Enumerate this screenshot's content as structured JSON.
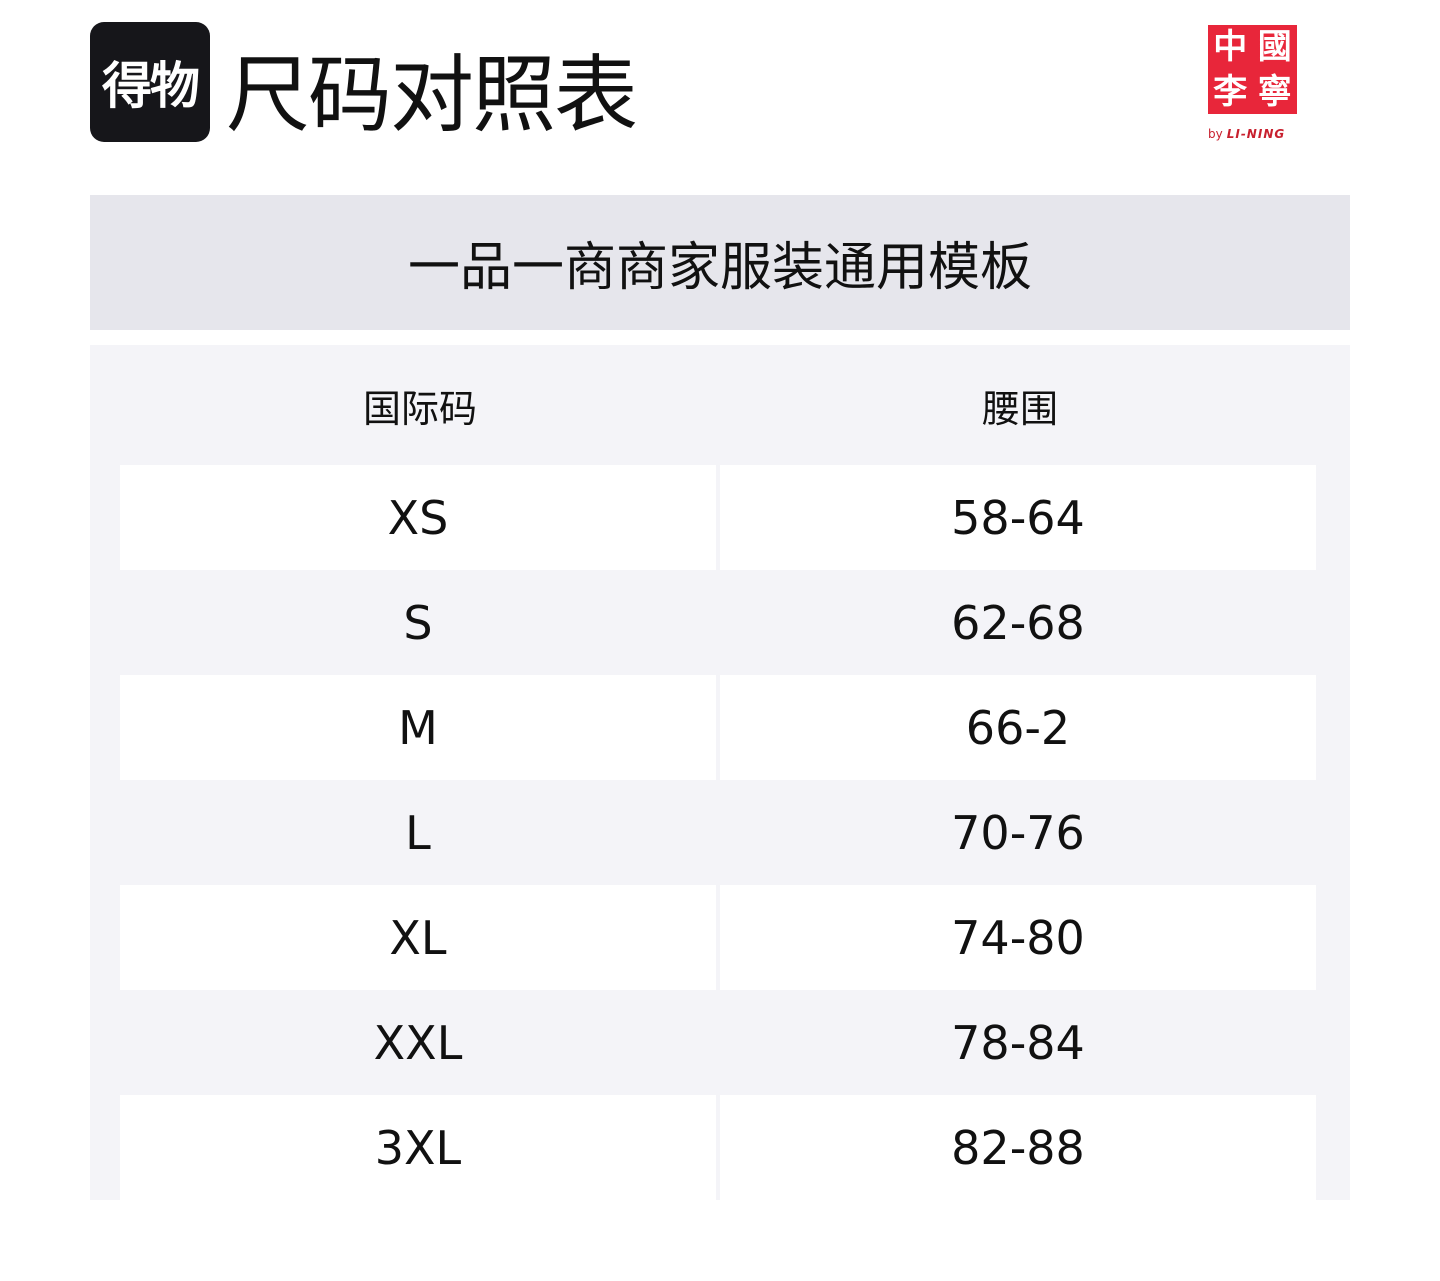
{
  "header": {
    "app_logo_text": "得物",
    "title": "尺码对照表",
    "brand_logo_text": [
      "中",
      "國",
      "李",
      "寧"
    ],
    "brand_by": "by",
    "brand_name": "LI-NING"
  },
  "banner": {
    "text": "一品一商商家服装通用模板"
  },
  "table": {
    "columns": [
      "国际码",
      "腰围"
    ],
    "rows": [
      [
        "XS",
        "58-64"
      ],
      [
        "S",
        "62-68"
      ],
      [
        "M",
        "66-2"
      ],
      [
        "L",
        "70-76"
      ],
      [
        "XL",
        "74-80"
      ],
      [
        "XXL",
        "78-84"
      ],
      [
        "3XL",
        "82-88"
      ]
    ]
  }
}
